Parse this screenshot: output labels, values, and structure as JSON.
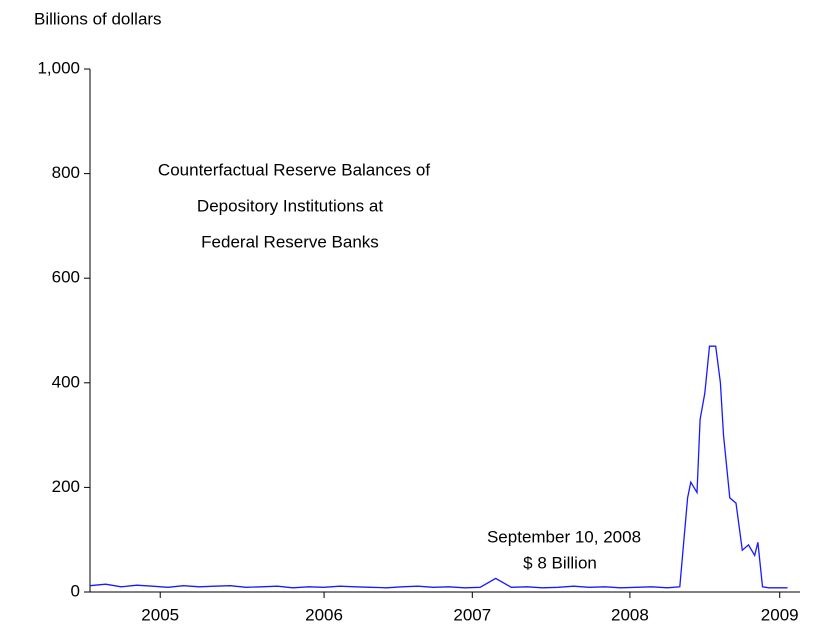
{
  "chart_data": {
    "type": "line",
    "title": "Billions of dollars",
    "annotations": [
      "Counterfactual Reserve Balances of",
      "Depository Institutions at",
      "Federal Reserve Banks",
      "September 10, 2008",
      "$ 8 Billion"
    ],
    "x": [
      2004.95,
      2005.05,
      2005.15,
      2005.25,
      2005.35,
      2005.45,
      2005.55,
      2005.65,
      2005.75,
      2005.85,
      2005.95,
      2006.05,
      2006.15,
      2006.25,
      2006.35,
      2006.45,
      2006.55,
      2006.65,
      2006.75,
      2006.85,
      2006.95,
      2007.05,
      2007.15,
      2007.25,
      2007.35,
      2007.45,
      2007.55,
      2007.65,
      2007.75,
      2007.85,
      2007.95,
      2008.05,
      2008.15,
      2008.25,
      2008.35,
      2008.45,
      2008.55,
      2008.65,
      2008.73,
      2008.78,
      2008.8,
      2008.84,
      2008.86,
      2008.89,
      2008.92,
      2008.96,
      2008.99,
      2009.01,
      2009.05,
      2009.09,
      2009.13,
      2009.17,
      2009.21,
      2009.23,
      2009.26,
      2009.3,
      2009.42
    ],
    "series": [
      {
        "name": "Counterfactual Reserve Balances",
        "color": "#1a1aff",
        "values": [
          12,
          15,
          10,
          13,
          11,
          9,
          12,
          10,
          11,
          12,
          9,
          10,
          11,
          8,
          10,
          9,
          11,
          10,
          9,
          8,
          10,
          11,
          9,
          10,
          8,
          9,
          26,
          9,
          10,
          8,
          9,
          11,
          9,
          10,
          8,
          9,
          10,
          8,
          10,
          180,
          210,
          190,
          330,
          380,
          470,
          470,
          400,
          300,
          180,
          170,
          80,
          90,
          70,
          95,
          10,
          8,
          8
        ]
      }
    ],
    "xlim": [
      2004.95,
      2009.5
    ],
    "xticks": [
      {
        "value": 2005.4,
        "label": "2005"
      },
      {
        "value": 2006.45,
        "label": "2006"
      },
      {
        "value": 2007.4,
        "label": "2007"
      },
      {
        "value": 2008.41,
        "label": "2008"
      },
      {
        "value": 2009.37,
        "label": "2009"
      }
    ],
    "ylim": [
      0,
      1000
    ],
    "yticks": [
      0,
      200,
      400,
      600,
      800,
      {
        "value": 1000,
        "label": "1,000"
      }
    ]
  }
}
